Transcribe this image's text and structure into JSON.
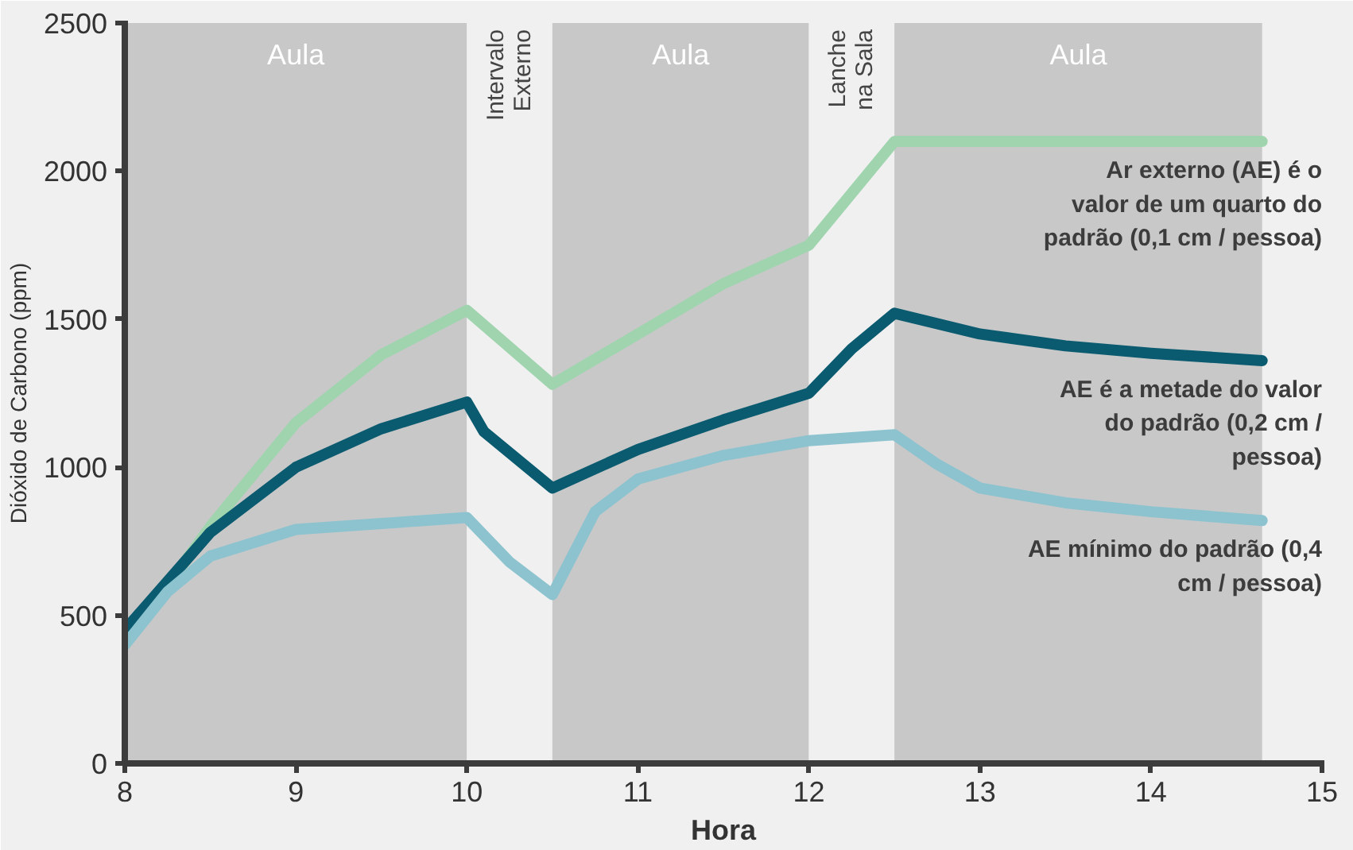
{
  "chart_data": {
    "type": "line",
    "xlabel": "Hora",
    "ylabel": "Dióxido de Carbono (ppm)",
    "xlim": [
      8,
      15
    ],
    "ylim": [
      0,
      2500
    ],
    "xticks": [
      8,
      9,
      10,
      11,
      12,
      13,
      14,
      15
    ],
    "yticks": [
      0,
      500,
      1000,
      1500,
      2000,
      2500
    ],
    "grid": false,
    "marker": "none",
    "line_style": "solid",
    "bands": [
      {
        "axis": "x",
        "from": 8,
        "to": 10,
        "label": "Aula",
        "color": "#c8c8c9"
      },
      {
        "axis": "x",
        "from": 10,
        "to": 10.5,
        "label": "Intervalo Externo",
        "color": "#f0f0f0"
      },
      {
        "axis": "x",
        "from": 10.5,
        "to": 12,
        "label": "Aula",
        "color": "#c8c8c9"
      },
      {
        "axis": "x",
        "from": 12,
        "to": 12.5,
        "label": "Lanche na Sala",
        "color": "#f0f0f0"
      },
      {
        "axis": "x",
        "from": 12.5,
        "to": 14.65,
        "label": "Aula",
        "color": "#c8c8c9"
      }
    ],
    "series": [
      {
        "name": "Ar externo (AE) é o valor de um quarto do padrão (0,1 cm / pessoa)",
        "color": "#9fd4ae",
        "x": [
          8,
          8.5,
          9,
          9.5,
          10,
          10.5,
          11,
          11.5,
          12,
          12.5,
          13,
          14,
          14.65
        ],
        "values": [
          400,
          800,
          1150,
          1380,
          1530,
          1280,
          1450,
          1620,
          1750,
          2100,
          2100,
          2100,
          2100
        ]
      },
      {
        "name": "AE é a metade do valor do padrão (0,2 cm / pessoa)",
        "color": "#0b5b70",
        "x": [
          8,
          8.5,
          9,
          9.5,
          10,
          10.1,
          10.5,
          11,
          11.5,
          12,
          12.25,
          12.5,
          13,
          13.5,
          14,
          14.65
        ],
        "values": [
          450,
          780,
          1000,
          1130,
          1220,
          1120,
          930,
          1060,
          1160,
          1250,
          1400,
          1520,
          1450,
          1410,
          1385,
          1360
        ]
      },
      {
        "name": "AE mínimo do padrão (0,4 cm / pessoa)",
        "color": "#8cc3cf",
        "x": [
          8,
          8.25,
          8.5,
          9,
          9.5,
          10,
          10.25,
          10.5,
          10.75,
          11,
          11.5,
          12,
          12.5,
          12.75,
          13,
          13.5,
          14,
          14.65
        ],
        "values": [
          400,
          580,
          700,
          790,
          810,
          830,
          680,
          570,
          850,
          960,
          1040,
          1090,
          1110,
          1010,
          930,
          880,
          850,
          820
        ]
      }
    ]
  }
}
